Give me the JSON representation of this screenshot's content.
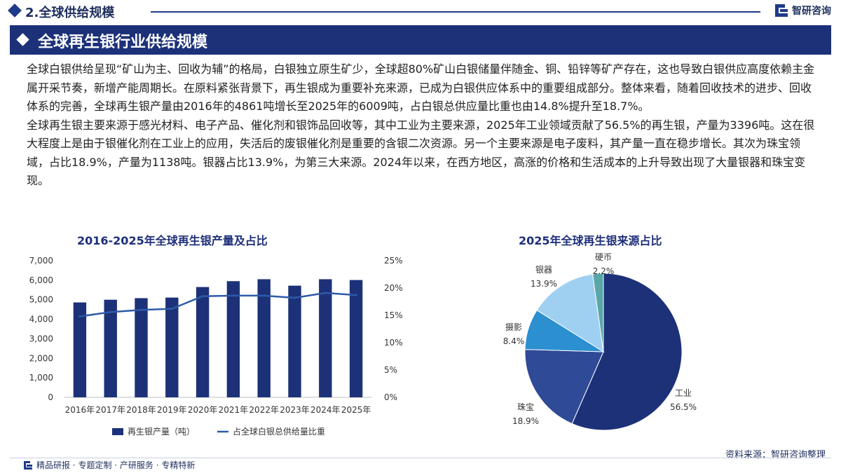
{
  "section": {
    "title": "2.全球供给规模"
  },
  "brand": {
    "name": "智研咨询",
    "logo_icon": "zhiyan-logo-icon"
  },
  "header": {
    "title": "全球再生银行业供给规模"
  },
  "paragraphs": [
    "全球白银供给呈现“矿山为主、回收为辅”的格局，白银独立原生矿少，全球超80%矿山白银储量伴随金、铜、铅锌等矿产存在，这也导致白银供应高度依赖主金属开采节奏，新增产能周期长。在原料紧张背景下，再生银成为重要补充来源，已成为白银供应体系中的重要组成部分。整体来看，随着回收技术的进步、回收体系的完善，全球再生银产量由2016年的4861吨增长至2025年的6009吨，占白银总供应量比重也由14.8%提升至18.7%。",
    "全球再生银主要来源于感光材料、电子产品、催化剂和银饰品回收等，其中工业为主要来源，2025年工业领域贡献了56.5%的再生银，产量为3396吨。这在很大程度上是由于银催化剂在工业上的应用，失活后的废银催化剂是重要的含银二次资源。另一个主要来源是电子废料，其产量一直在稳步增长。其次为珠宝领域，占比18.9%，产量为1138吨。银器占比13.9%，为第三大来源。2024年以来，在西方地区，高涨的价格和生活成本的上升导致出现了大量银器和珠宝变现。"
  ],
  "chart_data": [
    {
      "type": "bar",
      "title": "2016-2025年全球再生银产量及占比",
      "categories": [
        "2016年",
        "2017年",
        "2018年",
        "2019年",
        "2020年",
        "2021年",
        "2022年",
        "2023年",
        "2024年",
        "2025年"
      ],
      "series": [
        {
          "name": "再生银产量（吨）",
          "type": "bar",
          "axis": "left",
          "color": "#1c3178",
          "values": [
            4861,
            5000,
            5080,
            5110,
            5650,
            5950,
            6050,
            5720,
            6050,
            6009
          ]
        },
        {
          "name": "占全球白银总供给量比重",
          "type": "line",
          "axis": "right",
          "color": "#2e5aa8",
          "values": [
            14.8,
            15.6,
            16.0,
            16.2,
            18.5,
            18.6,
            18.6,
            18.2,
            19.1,
            18.7
          ]
        }
      ],
      "y_left": {
        "min": 0,
        "max": 7000,
        "ticks": [
          0,
          1000,
          2000,
          3000,
          4000,
          5000,
          6000,
          7000
        ],
        "tick_labels": [
          "0",
          "1,000",
          "2,000",
          "3,000",
          "4,000",
          "5,000",
          "6,000",
          "7,000"
        ]
      },
      "y_right": {
        "min": 0,
        "max": 25,
        "ticks": [
          0,
          5,
          10,
          15,
          20,
          25
        ],
        "tick_labels": [
          "0%",
          "5%",
          "10%",
          "15%",
          "20%",
          "25%"
        ]
      },
      "grid": false,
      "legend": "bottom"
    },
    {
      "type": "pie",
      "title": "2025年全球再生银来源占比",
      "slices": [
        {
          "label": "工业",
          "value": 56.5,
          "pct_text": "56.5%",
          "color": "#1c3178"
        },
        {
          "label": "珠宝",
          "value": 18.9,
          "pct_text": "18.9%",
          "color": "#2f4a96"
        },
        {
          "label": "摄影",
          "value": 8.4,
          "pct_text": "8.4%",
          "color": "#2b8fd0"
        },
        {
          "label": "银器",
          "value": 13.9,
          "pct_text": "13.9%",
          "color": "#9fd0f2"
        },
        {
          "label": "硬币",
          "value": 2.2,
          "pct_text": "2.2%",
          "color": "#5aa7a8"
        }
      ],
      "start_angle_deg": 0,
      "direction": "clockwise"
    }
  ],
  "source": {
    "text": "资料来源：智研咨询整理"
  },
  "footer": {
    "text": "精品研报 · 专题定制 · 产研服务 · 专精特新"
  }
}
